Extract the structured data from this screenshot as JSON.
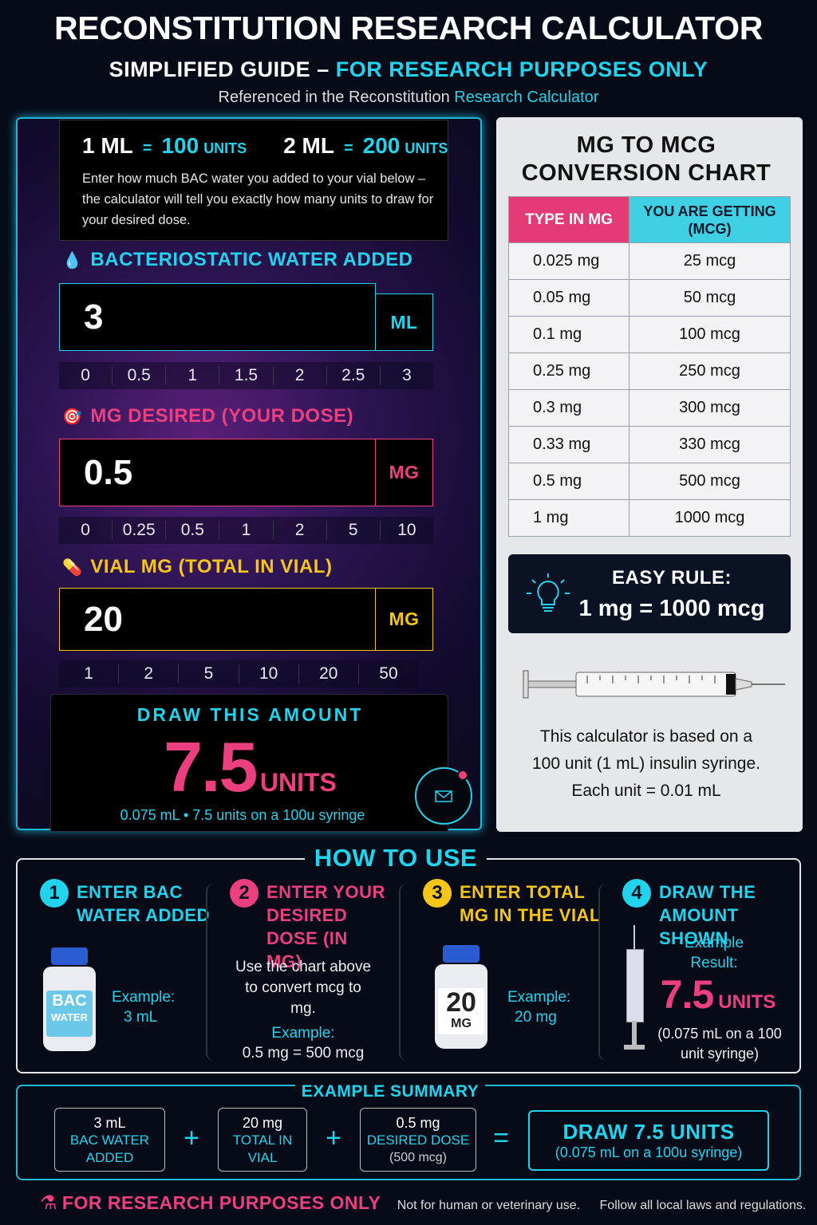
{
  "header": {
    "title": "RECONSTITUTION RESEARCH CALCULATOR",
    "subtitle_a": "SIMPLIFIED GUIDE –",
    "subtitle_b": "FOR RESEARCH PURPOSES ONLY",
    "reference_a": "Referenced in the Reconstitution",
    "reference_b": "Research Calculator"
  },
  "calculator": {
    "equations": [
      {
        "left": "1 ML",
        "sign": "=",
        "value": "100",
        "unit": "UNITS"
      },
      {
        "left": "2 ML",
        "sign": "=",
        "value": "200",
        "unit": "UNITS"
      }
    ],
    "instructions": "Enter how much BAC water you added to your vial below – the calculator will tell you exactly how many units to draw for your desired dose.",
    "fields": [
      {
        "icon": "💧",
        "label": "BACTERIOSTATIC WATER ADDED",
        "value": "3",
        "unit": "ML",
        "presets": [
          "0",
          "0.5",
          "1",
          "1.5",
          "2",
          "2.5",
          "3"
        ]
      },
      {
        "icon": "🎯",
        "label": "MG DESIRED (YOUR DOSE)",
        "value": "0.5",
        "unit": "MG",
        "presets": [
          "0",
          "0.25",
          "0.5",
          "1",
          "2",
          "5",
          "10"
        ]
      },
      {
        "icon": "💊",
        "label": "VIAL MG (TOTAL IN VIAL)",
        "value": "20",
        "unit": "MG",
        "presets": [
          "1",
          "2",
          "5",
          "10",
          "20",
          "50"
        ]
      }
    ],
    "result": {
      "heading": "DRAW THIS AMOUNT",
      "value": "7.5",
      "unit": "UNITS",
      "detail": "0.075 mL • 7.5 units on a 100u syringe"
    }
  },
  "conversion": {
    "title_lines": [
      "MG TO MCG",
      "CONVERSION CHART"
    ],
    "columns": [
      "TYPE IN MG",
      "YOU ARE GETTING (MCG)"
    ],
    "rows": [
      [
        "0.025 mg",
        "25 mcg"
      ],
      [
        "0.05 mg",
        "50 mcg"
      ],
      [
        "0.1 mg",
        "100 mcg"
      ],
      [
        "0.25 mg",
        "250 mcg"
      ],
      [
        "0.3 mg",
        "300 mcg"
      ],
      [
        "0.33 mg",
        "330 mcg"
      ],
      [
        "0.5 mg",
        "500 mcg"
      ],
      [
        "1 mg",
        "1000 mcg"
      ]
    ]
  },
  "rule": {
    "heading": "EASY RULE:",
    "text": "1 mg = 1000 mcg"
  },
  "syringe_note": [
    "This calculator is based on a",
    "100 unit (1 mL) insulin syringe.",
    "Each unit = 0.01 mL"
  ],
  "how_to_use": {
    "title": "HOW TO USE",
    "steps": [
      {
        "number": "1",
        "title": "ENTER BAC WATER ADDED",
        "vial_label": [
          "BAC",
          "WATER"
        ],
        "example_label": "Example:",
        "example_value": "3 mL"
      },
      {
        "number": "2",
        "title": "ENTER YOUR DESIRED DOSE (IN MG)",
        "note": "Use the chart above to convert mcg to mg.",
        "example_label": "Example:",
        "example_value": "0.5 mg = 500 mcg"
      },
      {
        "number": "3",
        "title": "ENTER TOTAL MG IN THE VIAL",
        "vial_label": [
          "20",
          "MG"
        ],
        "example_label": "Example:",
        "example_value": "20 mg"
      },
      {
        "number": "4",
        "title": "DRAW THE AMOUNT SHOWN",
        "example_label": "Example Result:",
        "result_value": "7.5",
        "result_unit": "UNITS",
        "example_value": "(0.075 mL on a 100 unit syringe)"
      }
    ]
  },
  "summary": {
    "title": "EXAMPLE SUMMARY",
    "items": [
      {
        "value": "3 mL",
        "label": "BAC WATER ADDED"
      },
      {
        "value": "20 mg",
        "label": "TOTAL IN VIAL"
      },
      {
        "value": "0.5 mg",
        "label": "DESIRED DOSE",
        "detail": "(500 mcg)"
      }
    ],
    "operators": [
      "+",
      "+",
      "="
    ],
    "result": {
      "text": "DRAW 7.5 UNITS",
      "detail": "(0.075 mL on a 100u syringe)"
    }
  },
  "footer": {
    "badge": "FOR RESEARCH PURPOSES ONLY",
    "note_a": "Not for human or veterinary use.",
    "note_b": "Follow all local laws and regulations."
  }
}
